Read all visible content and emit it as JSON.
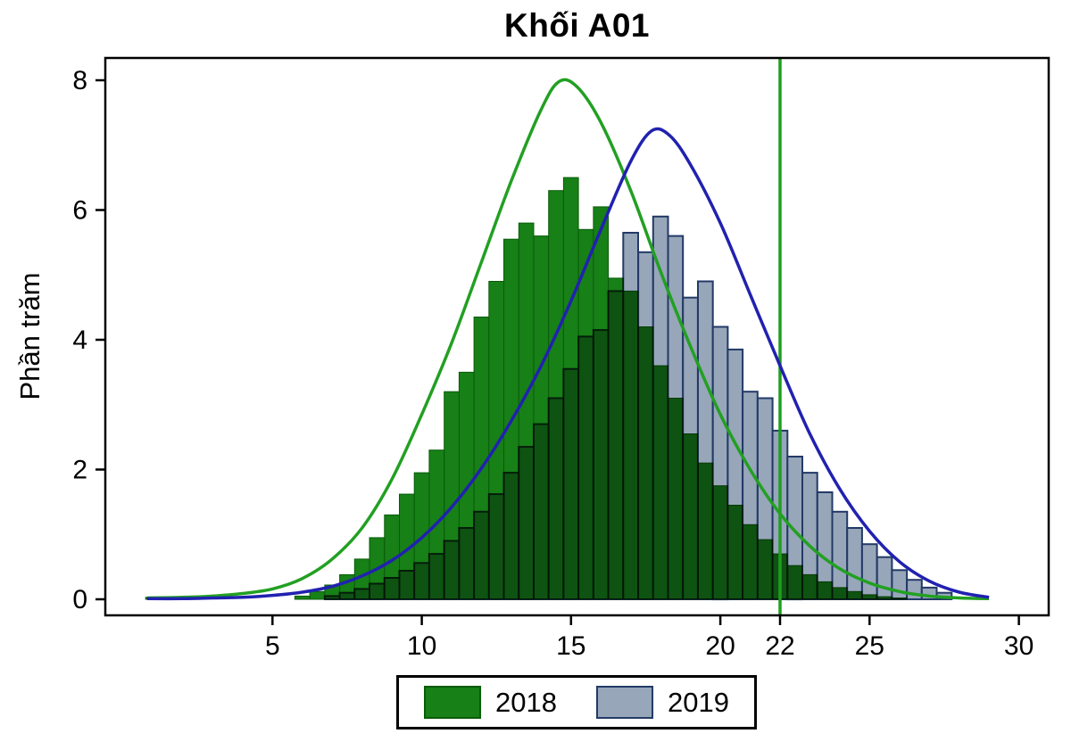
{
  "figure": {
    "title": "Khối A01",
    "ylabel": "Phần trăm"
  },
  "legend": {
    "items": [
      {
        "label": "2018",
        "color": "#178017",
        "border": "#0a5c0a"
      },
      {
        "label": "2019",
        "color": "#98a6ba",
        "border": "#223a66"
      }
    ]
  },
  "chart_data": {
    "type": "histogram+density",
    "title": "Khối A01",
    "xlabel": "",
    "ylabel": "Phần trăm",
    "xlim": [
      -0.6,
      31
    ],
    "ylim": [
      0,
      8
    ],
    "x_ticks": [
      5,
      10,
      15,
      20,
      22,
      25,
      30
    ],
    "y_ticks": [
      0,
      2,
      4,
      6,
      8
    ],
    "bin_width": 0.5,
    "grid": false,
    "legend_position": "bottom",
    "vline": {
      "x": 22,
      "color": "#1f9e1f"
    },
    "histograms": [
      {
        "name": "2018",
        "fill": "#178017",
        "stroke": "#0a5c0a",
        "bins": [
          [
            1,
            0.03
          ],
          [
            1.5,
            0.02
          ],
          [
            2,
            0.03
          ],
          [
            6,
            0.05
          ],
          [
            6.5,
            0.12
          ],
          [
            7,
            0.22
          ],
          [
            7.5,
            0.38
          ],
          [
            8,
            0.62
          ],
          [
            8.5,
            0.95
          ],
          [
            9,
            1.3
          ],
          [
            9.5,
            1.62
          ],
          [
            10,
            1.95
          ],
          [
            10.5,
            2.3
          ],
          [
            11,
            3.2
          ],
          [
            11.5,
            3.5
          ],
          [
            12,
            4.35
          ],
          [
            12.5,
            4.9
          ],
          [
            13,
            5.55
          ],
          [
            13.5,
            5.8
          ],
          [
            14,
            5.6
          ],
          [
            14.5,
            6.3
          ],
          [
            15,
            6.5
          ],
          [
            15.5,
            5.7
          ],
          [
            16,
            6.05
          ],
          [
            16.5,
            4.95
          ],
          [
            17,
            4.75
          ],
          [
            17.5,
            4.2
          ],
          [
            18,
            3.6
          ],
          [
            18.5,
            3.1
          ],
          [
            19,
            2.55
          ],
          [
            19.5,
            2.1
          ],
          [
            20,
            1.75
          ],
          [
            20.5,
            1.45
          ],
          [
            21,
            1.15
          ],
          [
            21.5,
            0.92
          ],
          [
            22,
            0.7
          ],
          [
            22.5,
            0.52
          ],
          [
            23,
            0.38
          ],
          [
            23.5,
            0.27
          ],
          [
            24,
            0.18
          ],
          [
            24.5,
            0.12
          ],
          [
            25,
            0.07
          ],
          [
            25.5,
            0.04
          ],
          [
            26,
            0.02
          ]
        ]
      },
      {
        "name": "2019",
        "fill": "#98a6ba",
        "stroke": "#223a66",
        "bins": [
          [
            7,
            0.05
          ],
          [
            7.5,
            0.1
          ],
          [
            8,
            0.16
          ],
          [
            8.5,
            0.24
          ],
          [
            9,
            0.33
          ],
          [
            9.5,
            0.44
          ],
          [
            10,
            0.56
          ],
          [
            10.5,
            0.7
          ],
          [
            11,
            0.9
          ],
          [
            11.5,
            1.1
          ],
          [
            12,
            1.35
          ],
          [
            12.5,
            1.62
          ],
          [
            13,
            1.95
          ],
          [
            13.5,
            2.35
          ],
          [
            14,
            2.7
          ],
          [
            14.5,
            3.1
          ],
          [
            15,
            3.55
          ],
          [
            15.5,
            4.05
          ],
          [
            16,
            4.15
          ],
          [
            16.5,
            4.75
          ],
          [
            17,
            5.65
          ],
          [
            17.5,
            5.35
          ],
          [
            18,
            5.9
          ],
          [
            18.5,
            5.6
          ],
          [
            19,
            4.65
          ],
          [
            19.5,
            4.9
          ],
          [
            20,
            4.2
          ],
          [
            20.5,
            3.85
          ],
          [
            21,
            3.2
          ],
          [
            21.5,
            3.1
          ],
          [
            22,
            2.6
          ],
          [
            22.5,
            2.2
          ],
          [
            23,
            1.95
          ],
          [
            23.5,
            1.65
          ],
          [
            24,
            1.35
          ],
          [
            24.5,
            1.1
          ],
          [
            25,
            0.85
          ],
          [
            25.5,
            0.65
          ],
          [
            26,
            0.45
          ],
          [
            26.5,
            0.3
          ],
          [
            27,
            0.18
          ],
          [
            27.5,
            0.1
          ]
        ]
      }
    ],
    "curves": [
      {
        "name": "2018 density",
        "color": "#22a022",
        "points": [
          [
            0.8,
            0.02
          ],
          [
            2,
            0.03
          ],
          [
            3,
            0.05
          ],
          [
            4,
            0.09
          ],
          [
            5,
            0.16
          ],
          [
            6,
            0.32
          ],
          [
            7,
            0.62
          ],
          [
            8,
            1.1
          ],
          [
            9,
            1.85
          ],
          [
            10,
            2.85
          ],
          [
            11,
            3.95
          ],
          [
            12,
            5.2
          ],
          [
            13,
            6.45
          ],
          [
            14,
            7.55
          ],
          [
            14.6,
            7.98
          ],
          [
            15.2,
            7.9
          ],
          [
            16,
            7.35
          ],
          [
            17,
            6.3
          ],
          [
            18,
            5.05
          ],
          [
            19,
            3.9
          ],
          [
            20,
            2.85
          ],
          [
            21,
            2.0
          ],
          [
            22,
            1.32
          ],
          [
            23,
            0.82
          ],
          [
            24,
            0.47
          ],
          [
            25,
            0.25
          ],
          [
            26,
            0.12
          ],
          [
            27,
            0.05
          ],
          [
            28,
            0.02
          ],
          [
            29,
            0.01
          ]
        ]
      },
      {
        "name": "2019 density",
        "color": "#2121b0",
        "points": [
          [
            0.8,
            0.01
          ],
          [
            2,
            0.01
          ],
          [
            3,
            0.02
          ],
          [
            4,
            0.03
          ],
          [
            5,
            0.06
          ],
          [
            6,
            0.11
          ],
          [
            7,
            0.2
          ],
          [
            8,
            0.36
          ],
          [
            9,
            0.6
          ],
          [
            10,
            0.95
          ],
          [
            11,
            1.42
          ],
          [
            12,
            2.02
          ],
          [
            13,
            2.75
          ],
          [
            14,
            3.6
          ],
          [
            15,
            4.6
          ],
          [
            16,
            5.7
          ],
          [
            17,
            6.75
          ],
          [
            17.7,
            7.22
          ],
          [
            18.3,
            7.15
          ],
          [
            19,
            6.7
          ],
          [
            20,
            5.8
          ],
          [
            21,
            4.7
          ],
          [
            22,
            3.6
          ],
          [
            23,
            2.55
          ],
          [
            24,
            1.7
          ],
          [
            25,
            1.05
          ],
          [
            26,
            0.58
          ],
          [
            27,
            0.28
          ],
          [
            28,
            0.11
          ],
          [
            29,
            0.03
          ]
        ]
      }
    ]
  }
}
